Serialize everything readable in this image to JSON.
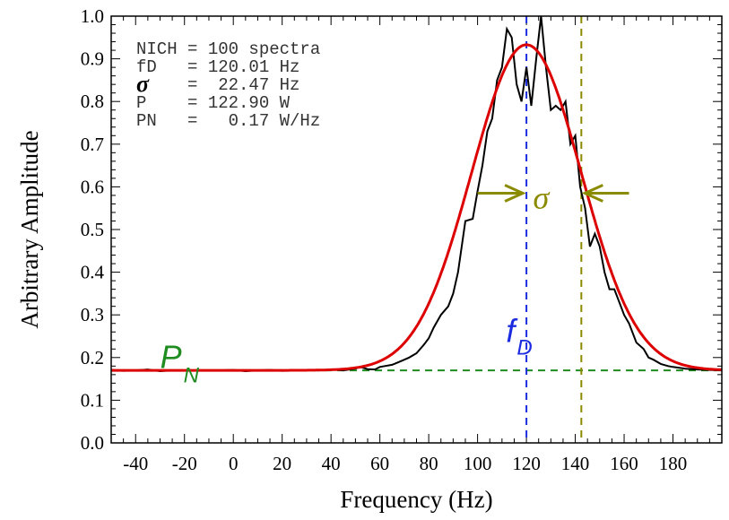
{
  "chart_data": {
    "type": "line",
    "title": "",
    "xlabel": "Frequency (Hz)",
    "ylabel": "Arbitrary Amplitude",
    "xlim": [
      -50,
      200
    ],
    "ylim": [
      0.0,
      1.0
    ],
    "x_ticks": [
      -40,
      -20,
      0,
      20,
      40,
      60,
      80,
      100,
      120,
      140,
      160,
      180
    ],
    "y_ticks": [
      "0.0",
      "0.1",
      "0.2",
      "0.3",
      "0.4",
      "0.5",
      "0.6",
      "0.7",
      "0.8",
      "0.9",
      "1.0"
    ],
    "grid": false,
    "info_lines": [
      {
        "label": "NICH",
        "value": " 100 spectra"
      },
      {
        "label": "fD  ",
        "value": " 120.01 Hz"
      },
      {
        "label": "σ",
        "value": "  22.47 Hz",
        "symbol": true
      },
      {
        "label": "P   ",
        "value": " 122.90 W"
      },
      {
        "label": "PN  ",
        "value": "   0.17 W/Hz"
      }
    ],
    "series": [
      {
        "kind": "measured",
        "color": "#000000",
        "x": [
          -50,
          -45,
          -40,
          -35,
          -30,
          -25,
          -5,
          0,
          5,
          10,
          15,
          20,
          25,
          30,
          35,
          40,
          45,
          50,
          52,
          55,
          58,
          60,
          62,
          65,
          68,
          70,
          72,
          75,
          78,
          80,
          82,
          85,
          88,
          90,
          92,
          95,
          98,
          100,
          102,
          104,
          106,
          108,
          110,
          112,
          114,
          116,
          118,
          120,
          122,
          124,
          126,
          128,
          130,
          132,
          134,
          136,
          138,
          140,
          142,
          144,
          146,
          148,
          150,
          152,
          154,
          156,
          158,
          160,
          162,
          165,
          168,
          170,
          172,
          175,
          178,
          180,
          185,
          190,
          195,
          200
        ],
        "y": [
          0.171,
          0.169,
          0.17,
          0.172,
          0.168,
          0.17,
          0.17,
          0.171,
          0.168,
          0.17,
          0.171,
          0.169,
          0.17,
          0.171,
          0.17,
          0.172,
          0.17,
          0.174,
          0.178,
          0.173,
          0.172,
          0.178,
          0.18,
          0.183,
          0.19,
          0.195,
          0.2,
          0.21,
          0.23,
          0.245,
          0.27,
          0.3,
          0.32,
          0.35,
          0.4,
          0.52,
          0.525,
          0.59,
          0.65,
          0.73,
          0.76,
          0.85,
          0.88,
          0.97,
          0.95,
          0.84,
          0.8,
          0.88,
          0.79,
          0.9,
          1.0,
          0.88,
          0.78,
          0.79,
          0.78,
          0.8,
          0.7,
          0.72,
          0.6,
          0.55,
          0.46,
          0.49,
          0.46,
          0.4,
          0.36,
          0.36,
          0.33,
          0.3,
          0.28,
          0.235,
          0.22,
          0.2,
          0.195,
          0.185,
          0.18,
          0.178,
          0.174,
          0.172,
          0.171,
          0.17
        ]
      },
      {
        "kind": "gaussian-fit",
        "color": "#dd0000",
        "baseline": 0.17,
        "amplitude": 0.763,
        "center": 120.0,
        "stddev": 22.47
      }
    ],
    "reference_lines": [
      {
        "kind": "noise-floor",
        "orientation": "horizontal",
        "value": 0.17,
        "color": "#1f8c1f",
        "style": "dashed"
      },
      {
        "kind": "doppler-center",
        "orientation": "vertical",
        "value": 120.01,
        "color": "#1a2be0",
        "style": "dashed"
      },
      {
        "kind": "width",
        "orientation": "vertical",
        "value": 142.48,
        "color": "#8b8b00",
        "style": "dashed"
      }
    ],
    "annotations": {
      "pn": {
        "main": "P",
        "sub": "N",
        "color": "#1f8c1f",
        "x": -22,
        "y": 0.175
      },
      "fd": {
        "main": "f",
        "sub": "D",
        "color": "#1a2be0",
        "x": 120,
        "y": 0.27
      },
      "sigma": {
        "text": "σ",
        "color": "#8b8b00",
        "x": 126,
        "y": 0.575,
        "arrow_left_from": 100,
        "arrow_right_from": 162,
        "arrow_y": 0.585
      }
    }
  }
}
